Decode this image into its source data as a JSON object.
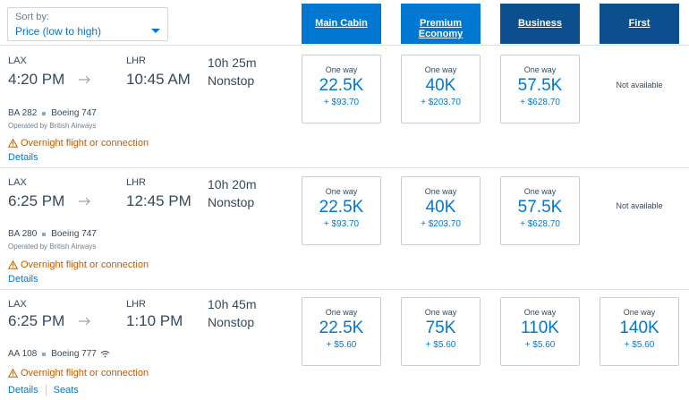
{
  "sort": {
    "label": "Sort by:",
    "value": "Price (low to high)"
  },
  "cabins": [
    {
      "label": "Main Cabin",
      "color": "#0078d2"
    },
    {
      "label": "Premium Economy",
      "color": "#0078d2"
    },
    {
      "label": "Business",
      "color": "#0b4f8f"
    },
    {
      "label": "First",
      "color": "#0b4f8f"
    }
  ],
  "flights": [
    {
      "origin": "LAX",
      "depart": "4:20 PM",
      "destination": "LHR",
      "arrive": "10:45 AM",
      "duration": "10h 25m",
      "stops": "Nonstop",
      "flight_number": "BA 282",
      "aircraft": "Boeing 747",
      "operated_by": "Operated by British Airways",
      "warning": "Overnight flight or connection",
      "details": "Details",
      "fares": [
        {
          "label": "One way",
          "miles": "22.5K",
          "tax": "+ $93.70"
        },
        {
          "label": "One way",
          "miles": "40K",
          "tax": "+ $203.70"
        },
        {
          "label": "One way",
          "miles": "57.5K",
          "tax": "+ $628.70"
        }
      ],
      "first_unavailable": "Not available"
    },
    {
      "origin": "LAX",
      "depart": "6:25 PM",
      "destination": "LHR",
      "arrive": "12:45 PM",
      "duration": "10h 20m",
      "stops": "Nonstop",
      "flight_number": "BA 280",
      "aircraft": "Boeing 747",
      "operated_by": "Operated by British Airways",
      "warning": "Overnight flight or connection",
      "details": "Details",
      "fares": [
        {
          "label": "One way",
          "miles": "22.5K",
          "tax": "+ $93.70"
        },
        {
          "label": "One way",
          "miles": "40K",
          "tax": "+ $203.70"
        },
        {
          "label": "One way",
          "miles": "57.5K",
          "tax": "+ $628.70"
        }
      ],
      "first_unavailable": "Not available"
    },
    {
      "origin": "LAX",
      "depart": "6:25 PM",
      "destination": "LHR",
      "arrive": "1:10 PM",
      "duration": "10h 45m",
      "stops": "Nonstop",
      "flight_number": "AA 108",
      "aircraft": "Boeing 777",
      "warning": "Overnight flight or connection",
      "details": "Details",
      "seats": "Seats",
      "fares": [
        {
          "label": "One way",
          "miles": "22.5K",
          "tax": "+ $5.60"
        },
        {
          "label": "One way",
          "miles": "75K",
          "tax": "+ $5.60"
        },
        {
          "label": "One way",
          "miles": "110K",
          "tax": "+ $5.60"
        },
        {
          "label": "One way",
          "miles": "140K",
          "tax": "+ $5.60"
        }
      ]
    }
  ]
}
